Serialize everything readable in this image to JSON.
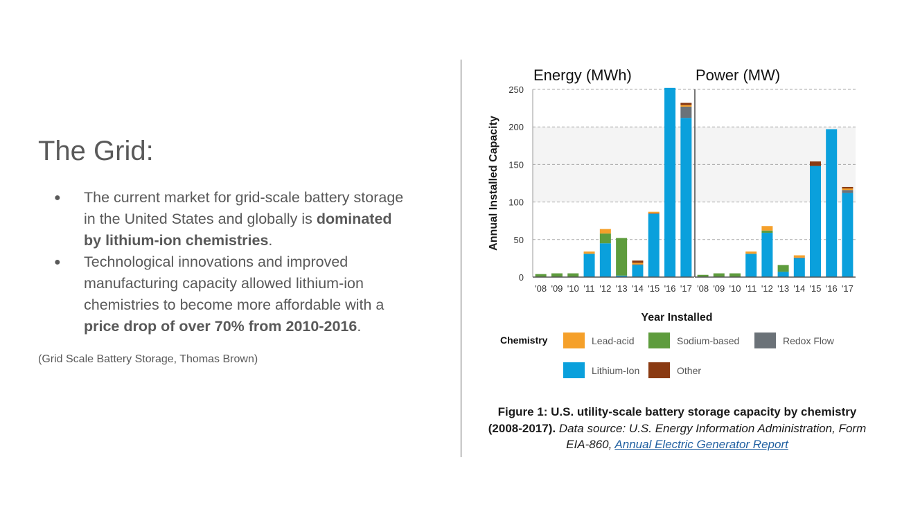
{
  "slide": {
    "title": "The Grid:",
    "bullets": [
      {
        "parts": [
          {
            "text": "The current market for grid-scale battery storage in the United States and globally is ",
            "bold": false
          },
          {
            "text": "dominated by lithium-ion chemistries",
            "bold": true
          },
          {
            "text": ".",
            "bold": false
          }
        ]
      },
      {
        "parts": [
          {
            "text": "Technological innovations and improved manufacturing capacity allowed  lithium-ion chemistries to become more affordable with a ",
            "bold": false
          },
          {
            "text": "price drop of over 70% from 2010-2016",
            "bold": true
          },
          {
            "text": ".",
            "bold": false
          }
        ]
      }
    ],
    "citation": "(Grid Scale Battery Storage, Thomas Brown)"
  },
  "caption": {
    "bold": "Figure 1: U.S. utility-scale battery storage capacity by chemistry (2008-2017).",
    "italic": " Data source: U.S. Energy Information Administration, Form EIA-860, ",
    "link": "Annual Electric Generator Report"
  },
  "chart_data": {
    "type": "bar",
    "stacked": true,
    "ylabel": "Annual Installed Capacity",
    "xlabel": "Year Installed",
    "ylim": [
      0,
      250
    ],
    "yticks": [
      0,
      50,
      100,
      150,
      200,
      250
    ],
    "grid": "dashed-horizontal",
    "legend_title": "Chemistry",
    "legend_position": "bottom",
    "chemistries": [
      {
        "name": "Lead-acid",
        "color": "#f5a02a"
      },
      {
        "name": "Sodium-based",
        "color": "#5e9c3d"
      },
      {
        "name": "Redox Flow",
        "color": "#6b7278"
      },
      {
        "name": "Lithium-Ion",
        "color": "#0aa0dc"
      },
      {
        "name": "Other",
        "color": "#8a3a12"
      }
    ],
    "stack_order": [
      "Lithium-Ion",
      "Sodium-based",
      "Redox Flow",
      "Lead-acid",
      "Other"
    ],
    "panels": [
      {
        "title": "Energy (MWh)",
        "categories": [
          "'08",
          "'09",
          "'10",
          "'11",
          "'12",
          "'13",
          "'14",
          "'15",
          "'16",
          "'17"
        ],
        "series": [
          {
            "name": "Lithium-Ion",
            "values": [
              0,
              0,
              0,
              31,
              45,
              2,
              16,
              84,
              252,
              212
            ]
          },
          {
            "name": "Sodium-based",
            "values": [
              4,
              5,
              5,
              0,
              13,
              50,
              0,
              0,
              0,
              0
            ]
          },
          {
            "name": "Redox Flow",
            "values": [
              0,
              0,
              0,
              0,
              0,
              0,
              1,
              1,
              0,
              15
            ]
          },
          {
            "name": "Lead-acid",
            "values": [
              0,
              0,
              0,
              3,
              6,
              0,
              2,
              2,
              0,
              2
            ]
          },
          {
            "name": "Other",
            "values": [
              0,
              0,
              0,
              0,
              0,
              0,
              3,
              0,
              0,
              3
            ]
          }
        ]
      },
      {
        "title": "Power (MW)",
        "categories": [
          "'08",
          "'09",
          "'10",
          "'11",
          "'12",
          "'13",
          "'14",
          "'15",
          "'16",
          "'17"
        ],
        "series": [
          {
            "name": "Lithium-Ion",
            "values": [
              0,
              0,
              0,
              31,
              59,
              7,
              25,
              148,
              197,
              112
            ]
          },
          {
            "name": "Sodium-based",
            "values": [
              3,
              5,
              5,
              0,
              3,
              9,
              0,
              0,
              0,
              0
            ]
          },
          {
            "name": "Redox Flow",
            "values": [
              0,
              0,
              0,
              0,
              0,
              0,
              1,
              0,
              0,
              4
            ]
          },
          {
            "name": "Lead-acid",
            "values": [
              0,
              0,
              0,
              3,
              6,
              0,
              3,
              0,
              0,
              2
            ]
          },
          {
            "name": "Other",
            "values": [
              0,
              0,
              0,
              0,
              0,
              0,
              0,
              6,
              0,
              2
            ]
          }
        ]
      }
    ]
  }
}
